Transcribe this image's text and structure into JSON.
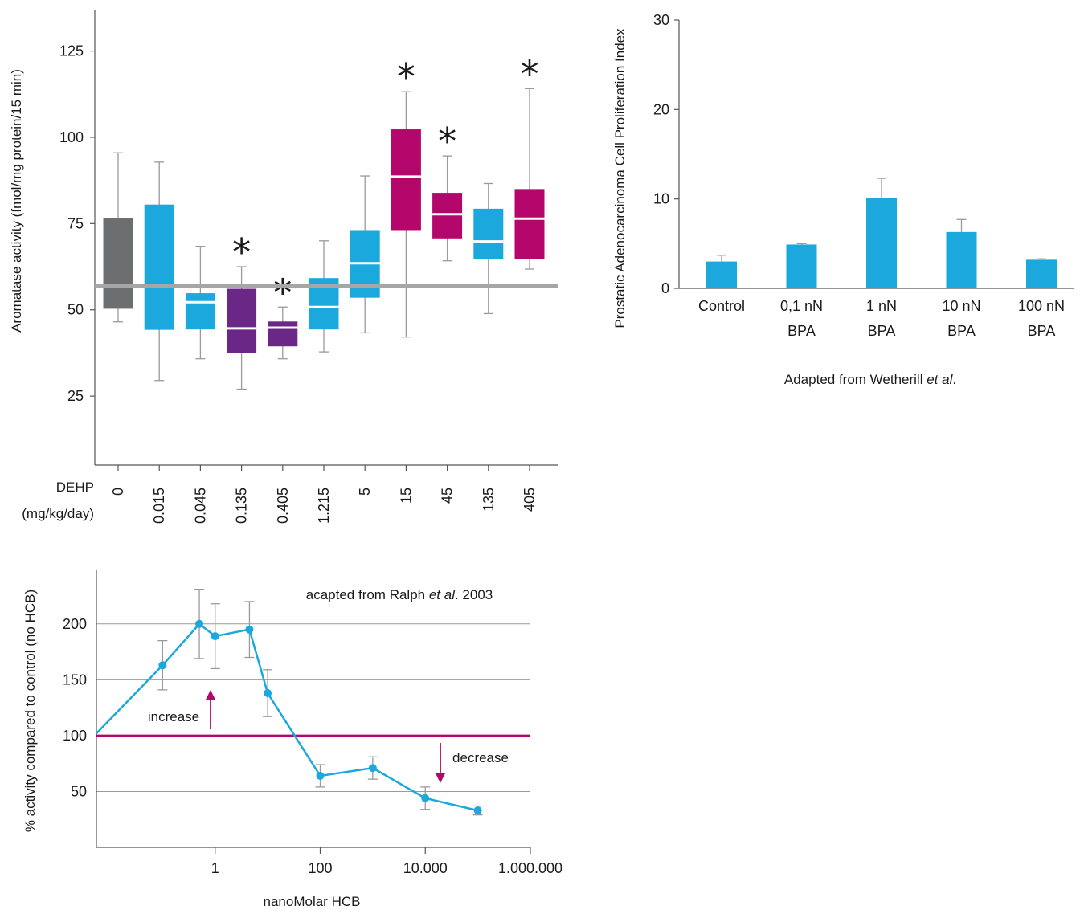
{
  "colors": {
    "control": "#6d6e70",
    "low": "#1ba8dc",
    "sig_low": "#6b2785",
    "sig_high": "#b5076b",
    "reference": "#a6a6a6",
    "whisker": "#9a9a9a",
    "axis": "#555555",
    "grid": "#9a9a9a",
    "control_line": "#b5076b",
    "hcb_line": "#1ba8dc",
    "arrow": "#b5076b"
  },
  "chart_data": [
    {
      "id": "dehp",
      "type": "box",
      "ylabel": "Aromatase activity (fmol/mg protein/15 min)",
      "xlabel_lines": [
        "DEHP",
        "(mg/kg/day)"
      ],
      "ylim": [
        5,
        137
      ],
      "yticks": [
        25,
        50,
        75,
        100,
        125
      ],
      "reference_line": 57,
      "categories": [
        "0",
        "0.015",
        "0.045",
        "0.135",
        "0.405",
        "1.215",
        "5",
        "15",
        "45",
        "135",
        "405"
      ],
      "boxes": [
        {
          "min": 46.5,
          "q1": 50.3,
          "median": null,
          "q3": 76.5,
          "max": 95.5,
          "group": "control",
          "star": false
        },
        {
          "min": 29.5,
          "q1": 44.2,
          "median": null,
          "q3": 80.5,
          "max": 92.8,
          "group": "low",
          "star": false
        },
        {
          "min": 35.8,
          "q1": 44.3,
          "median": 52.2,
          "q3": 54.8,
          "max": 68.4,
          "group": "low",
          "star": false
        },
        {
          "min": 27.0,
          "q1": 37.5,
          "median": 44.6,
          "q3": 56.1,
          "max": 62.5,
          "group": "sig_low",
          "star": true
        },
        {
          "min": 35.8,
          "q1": 39.4,
          "median": 44.8,
          "q3": 46.6,
          "max": 50.8,
          "group": "sig_low",
          "star": true
        },
        {
          "min": 37.8,
          "q1": 44.3,
          "median": 50.8,
          "q3": 59.2,
          "max": 70.0,
          "group": "low",
          "star": false
        },
        {
          "min": 43.3,
          "q1": 53.5,
          "median": 63.5,
          "q3": 73.1,
          "max": 88.8,
          "group": "low",
          "star": false
        },
        {
          "min": 42.1,
          "q1": 73.1,
          "median": 88.6,
          "q3": 102.3,
          "max": 113.2,
          "group": "sig_high",
          "star": true
        },
        {
          "min": 64.2,
          "q1": 70.7,
          "median": 77.7,
          "q3": 83.9,
          "max": 94.6,
          "group": "sig_high",
          "star": true
        },
        {
          "min": 48.9,
          "q1": 64.6,
          "median": 69.8,
          "q3": 79.3,
          "max": 86.6,
          "group": "low",
          "star": false
        },
        {
          "min": 61.8,
          "q1": 64.6,
          "median": 76.4,
          "q3": 85.0,
          "max": 114.1,
          "group": "sig_high",
          "star": true
        }
      ],
      "star_symbol": "*"
    },
    {
      "id": "bpa",
      "type": "bar",
      "ylabel": "Prostatic Adenocarcinoma Cell Proliferation Index",
      "ylim": [
        0,
        30
      ],
      "yticks": [
        0,
        10,
        20,
        30
      ],
      "categories": [
        {
          "line1": "Control",
          "line2": ""
        },
        {
          "line1": "0,1 nN",
          "line2": "BPA"
        },
        {
          "line1": "1 nN",
          "line2": "BPA"
        },
        {
          "line1": "10 nN",
          "line2": "BPA"
        },
        {
          "line1": "100 nN",
          "line2": "BPA"
        }
      ],
      "values": [
        3.0,
        4.9,
        10.1,
        6.3,
        3.2
      ],
      "errors": [
        0.7,
        0.1,
        2.2,
        1.4,
        0.1
      ],
      "source": {
        "prefix": "Adapted from Wetherill ",
        "italic": "et al",
        "suffix": "."
      }
    },
    {
      "id": "hcb",
      "type": "line",
      "ylabel": "% activity compared to control (no HCB)",
      "xlabel": "nanoMolar HCB",
      "xscale": "log",
      "xlim": [
        0.0055,
        1000000
      ],
      "ylim": [
        0,
        248
      ],
      "yticks": [
        50,
        100,
        150,
        200
      ],
      "xticks": [
        1,
        100,
        10000,
        1000000
      ],
      "xtick_labels": [
        "1",
        "100",
        "10.000",
        "1.000.000"
      ],
      "control_level": 100,
      "series": [
        {
          "points": [
            {
              "x": 0.0055,
              "y": 102,
              "err": null
            },
            {
              "x": 0.1,
              "y": 163,
              "err": 22
            },
            {
              "x": 0.5,
              "y": 200,
              "err": 31
            },
            {
              "x": 1.0,
              "y": 189,
              "err": 29
            },
            {
              "x": 4.5,
              "y": 195,
              "err": 25
            },
            {
              "x": 10,
              "y": 138,
              "err": 21
            },
            {
              "x": 100,
              "y": 64,
              "err": 10
            },
            {
              "x": 1000,
              "y": 71,
              "err": 10
            },
            {
              "x": 10000,
              "y": 44,
              "err": 10
            },
            {
              "x": 100000,
              "y": 33,
              "err": 4
            }
          ]
        }
      ],
      "annotations": {
        "increase": "increase",
        "decrease": "decrease",
        "source": {
          "prefix": "acapted from Ralph ",
          "italic": "et al",
          "suffix": ". 2003"
        }
      }
    }
  ]
}
